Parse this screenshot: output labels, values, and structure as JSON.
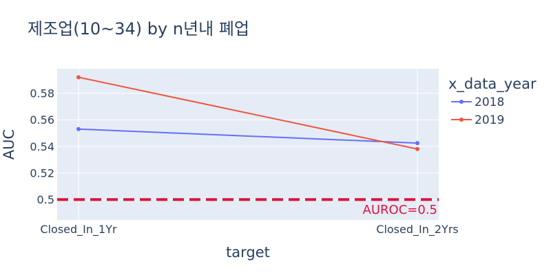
{
  "chart_data": {
    "type": "line",
    "title": "제조업(10~34) by n년내 폐업",
    "xlabel": "target",
    "ylabel": "AUC",
    "categories": [
      "Closed_In_1Yr",
      "Closed_In_2Yrs"
    ],
    "series": [
      {
        "name": "2018",
        "values": [
          0.553,
          0.5425
        ],
        "color": "#636efa"
      },
      {
        "name": "2019",
        "values": [
          0.592,
          0.538
        ],
        "color": "#ef553b"
      }
    ],
    "ylim": [
      0.4846,
      0.5984
    ],
    "yticks": [
      0.5,
      0.52,
      0.54,
      0.56,
      0.58
    ],
    "ytick_labels": [
      "0.5",
      "0.52",
      "0.54",
      "0.56",
      "0.58"
    ],
    "legend_title": "x_data_year",
    "legend_position": "right",
    "grid": true,
    "reference_line": {
      "y": 0.5,
      "label": "AUROC=0.5",
      "color": "#dc143c",
      "dash": "dashed"
    },
    "plot_bg": "#e5ecf6"
  }
}
